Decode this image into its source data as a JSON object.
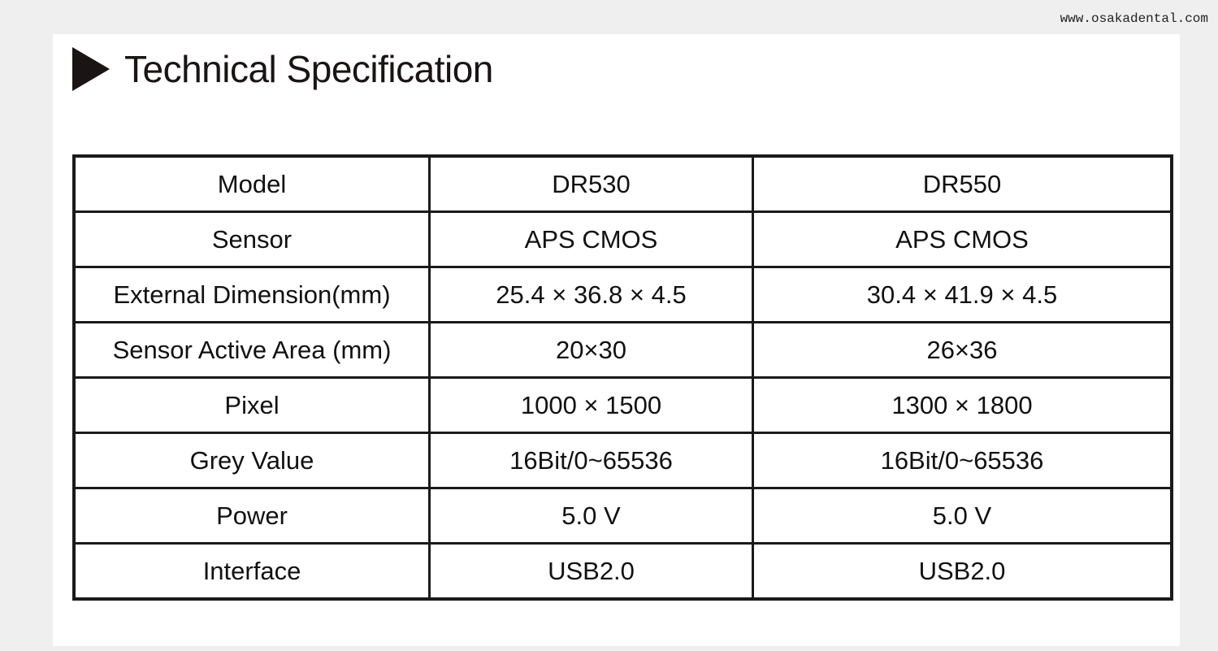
{
  "watermark": "www.osakadental.com",
  "title": "Technical Specification",
  "table": {
    "rows": [
      [
        "Model",
        "DR530",
        "DR550"
      ],
      [
        "Sensor",
        "APS CMOS",
        "APS CMOS"
      ],
      [
        "External Dimension(mm)",
        "25.4 × 36.8 × 4.5",
        "30.4 × 41.9 × 4.5"
      ],
      [
        "Sensor Active Area (mm)",
        "20×30",
        "26×36"
      ],
      [
        "Pixel",
        "1000 × 1500",
        "1300 × 1800"
      ],
      [
        "Grey Value",
        "16Bit/0~65536",
        "16Bit/0~65536"
      ],
      [
        "Power",
        "5.0 V",
        "5.0 V"
      ],
      [
        "Interface",
        "USB2.0",
        "USB2.0"
      ]
    ]
  }
}
